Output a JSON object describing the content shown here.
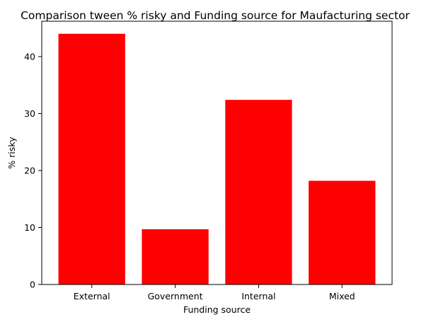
{
  "chart_data": {
    "type": "bar",
    "title": "Comparison tween % risky and Funding source for Maufacturing sector",
    "xlabel": "Funding source",
    "ylabel": "% risky",
    "categories": [
      "External",
      "Government",
      "Internal",
      "Mixed"
    ],
    "values": [
      44.0,
      9.7,
      32.4,
      18.2
    ],
    "ylim": [
      0,
      46.2
    ],
    "yticks": [
      0,
      10,
      20,
      30,
      40
    ],
    "bar_color": "#ff0000",
    "grid": false,
    "legend": "none"
  }
}
